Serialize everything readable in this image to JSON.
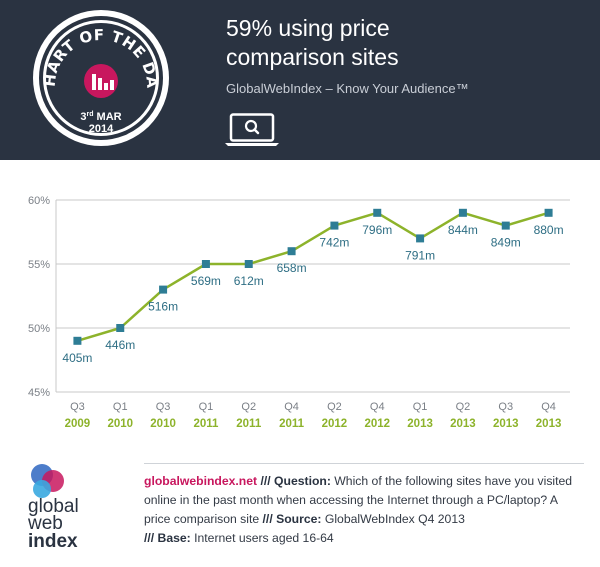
{
  "header": {
    "badge_top": "CHART OF THE DAY",
    "badge_date_day": "3",
    "badge_date_suffix": "rd",
    "badge_date_month": "MAR",
    "badge_date_year": "2014",
    "title_line1": "59% using price",
    "title_line2": "comparison sites",
    "subtitle": "GlobalWebIndex – Know Your Audience™",
    "icon": "laptop-search-icon"
  },
  "chart_data": {
    "type": "line",
    "categories": [
      {
        "q": "Q3",
        "y": "2009"
      },
      {
        "q": "Q1",
        "y": "2010"
      },
      {
        "q": "Q3",
        "y": "2010"
      },
      {
        "q": "Q1",
        "y": "2011"
      },
      {
        "q": "Q2",
        "y": "2011"
      },
      {
        "q": "Q4",
        "y": "2011"
      },
      {
        "q": "Q2",
        "y": "2012"
      },
      {
        "q": "Q4",
        "y": "2012"
      },
      {
        "q": "Q1",
        "y": "2013"
      },
      {
        "q": "Q2",
        "y": "2013"
      },
      {
        "q": "Q3",
        "y": "2013"
      },
      {
        "q": "Q4",
        "y": "2013"
      }
    ],
    "values": [
      49,
      50,
      53,
      55,
      55,
      56,
      58,
      59,
      57,
      59,
      58,
      59
    ],
    "data_labels": [
      "405m",
      "446m",
      "516m",
      "569m",
      "612m",
      "658m",
      "742m",
      "796m",
      "791m",
      "844m",
      "849m",
      "880m"
    ],
    "yticks": [
      "45%",
      "50%",
      "55%",
      "60%"
    ],
    "ytick_values": [
      45,
      50,
      55,
      60
    ],
    "ylim": [
      45,
      60
    ],
    "grid": true,
    "line_color": "#8db32b",
    "marker_color": "#2e7d95",
    "label_color": "#2e6e84",
    "year_color": "#8db32b"
  },
  "footer": {
    "logo_line1": "global",
    "logo_line2": "web",
    "logo_line3": "index",
    "site": "globalwebindex.net",
    "sep1": " /// ",
    "question_label": "Question:",
    "question": " Which of the following sites have you visited online in the past month when accessing the Internet through a PC/laptop? A price comparison site",
    "sep2": " /// ",
    "source_label": "Source:",
    "source": " GlobalWebIndex Q4 2013",
    "sep3": "/// ",
    "base_label": "Base:",
    "base": " Internet users aged 16-64"
  }
}
